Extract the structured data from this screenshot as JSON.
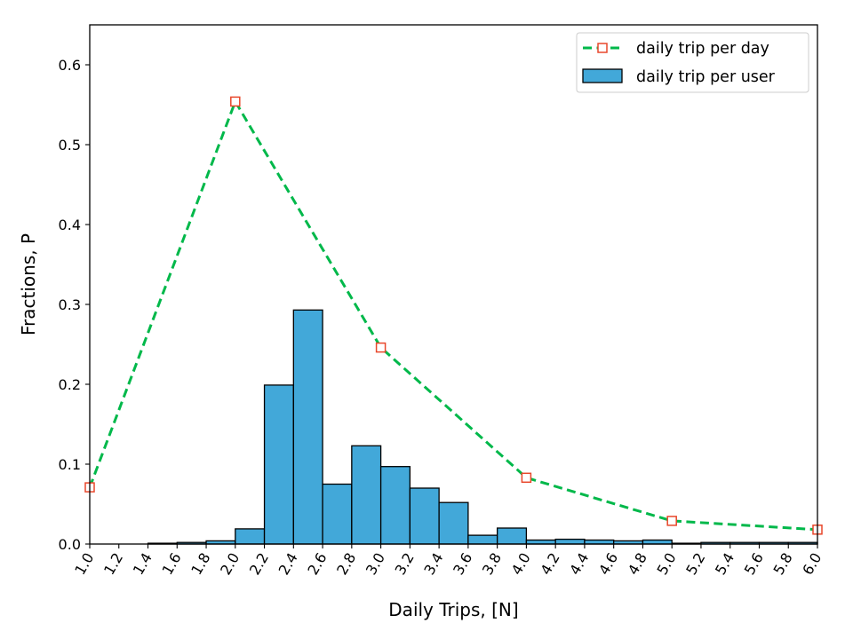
{
  "chart_data": {
    "type": "bar",
    "xlabel": "Daily Trips, [N]",
    "ylabel": "Fractions, P",
    "xlim": [
      1.0,
      6.0
    ],
    "ylim": [
      0.0,
      0.65
    ],
    "x_ticks": [
      "1.0",
      "1.2",
      "1.4",
      "1.6",
      "1.8",
      "2.0",
      "2.2",
      "2.4",
      "2.6",
      "2.8",
      "3.0",
      "3.2",
      "3.4",
      "3.6",
      "3.8",
      "4.0",
      "4.2",
      "4.4",
      "4.6",
      "4.8",
      "5.0",
      "5.2",
      "5.4",
      "5.6",
      "5.8",
      "6.0"
    ],
    "y_ticks": [
      "0.0",
      "0.1",
      "0.2",
      "0.3",
      "0.4",
      "0.5",
      "0.6"
    ],
    "grid": false,
    "legend_position": "top-right",
    "histogram": {
      "name": "daily trip per user",
      "color": "#42a8d9",
      "bin_width": 0.2,
      "bins": [
        {
          "start": 1.4,
          "value": 0.001
        },
        {
          "start": 1.6,
          "value": 0.002
        },
        {
          "start": 1.8,
          "value": 0.004
        },
        {
          "start": 2.0,
          "value": 0.019
        },
        {
          "start": 2.2,
          "value": 0.199
        },
        {
          "start": 2.4,
          "value": 0.293
        },
        {
          "start": 2.6,
          "value": 0.075
        },
        {
          "start": 2.8,
          "value": 0.123
        },
        {
          "start": 3.0,
          "value": 0.097
        },
        {
          "start": 3.2,
          "value": 0.07
        },
        {
          "start": 3.4,
          "value": 0.052
        },
        {
          "start": 3.6,
          "value": 0.011
        },
        {
          "start": 3.8,
          "value": 0.02
        },
        {
          "start": 4.0,
          "value": 0.005
        },
        {
          "start": 4.2,
          "value": 0.006
        },
        {
          "start": 4.4,
          "value": 0.005
        },
        {
          "start": 4.6,
          "value": 0.004
        },
        {
          "start": 4.8,
          "value": 0.005
        },
        {
          "start": 5.0,
          "value": 0.001
        },
        {
          "start": 5.2,
          "value": 0.002
        },
        {
          "start": 5.4,
          "value": 0.002
        },
        {
          "start": 5.6,
          "value": 0.002
        },
        {
          "start": 5.8,
          "value": 0.002
        }
      ]
    },
    "line": {
      "name": "daily trip per day",
      "line_color": "#00b84a",
      "marker_color": "#e8472b",
      "x": [
        1,
        2,
        3,
        4,
        5,
        6
      ],
      "y": [
        0.071,
        0.554,
        0.246,
        0.083,
        0.029,
        0.018
      ]
    }
  }
}
